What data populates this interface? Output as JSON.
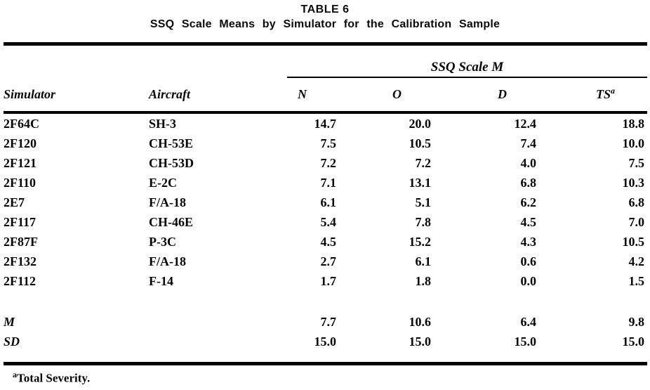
{
  "title": {
    "line1": "TABLE 6",
    "line2": "SSQ Scale Means by Simulator for the Calibration Sample"
  },
  "table": {
    "span_header": "SSQ Scale M",
    "columns": {
      "simulator": "Simulator",
      "aircraft": "Aircraft",
      "n": "N",
      "o": "O",
      "d": "D",
      "ts": "TS",
      "ts_superscript": "a"
    },
    "rows": [
      {
        "simulator": "2F64C",
        "aircraft": "SH-3",
        "n": "14.7",
        "o": "20.0",
        "d": "12.4",
        "ts": "18.8"
      },
      {
        "simulator": "2F120",
        "aircraft": "CH-53E",
        "n": "7.5",
        "o": "10.5",
        "d": "7.4",
        "ts": "10.0"
      },
      {
        "simulator": "2F121",
        "aircraft": "CH-53D",
        "n": "7.2",
        "o": "7.2",
        "d": "4.0",
        "ts": "7.5"
      },
      {
        "simulator": "2F110",
        "aircraft": "E-2C",
        "n": "7.1",
        "o": "13.1",
        "d": "6.8",
        "ts": "10.3"
      },
      {
        "simulator": "2E7",
        "aircraft": "F/A-18",
        "n": "6.1",
        "o": "5.1",
        "d": "6.2",
        "ts": "6.8"
      },
      {
        "simulator": "2F117",
        "aircraft": "CH-46E",
        "n": "5.4",
        "o": "7.8",
        "d": "4.5",
        "ts": "7.0"
      },
      {
        "simulator": "2F87F",
        "aircraft": "P-3C",
        "n": "4.5",
        "o": "15.2",
        "d": "4.3",
        "ts": "10.5"
      },
      {
        "simulator": "2F132",
        "aircraft": "F/A-18",
        "n": "2.7",
        "o": "6.1",
        "d": "0.6",
        "ts": "4.2"
      },
      {
        "simulator": "2F112",
        "aircraft": "F-14",
        "n": "1.7",
        "o": "1.8",
        "d": "0.0",
        "ts": "1.5"
      }
    ],
    "summary_rows": [
      {
        "label": "M",
        "n": "7.7",
        "o": "10.6",
        "d": "6.4",
        "ts": "9.8"
      },
      {
        "label": "SD",
        "n": "15.0",
        "o": "15.0",
        "d": "15.0",
        "ts": "15.0"
      }
    ],
    "footnote": {
      "superscript": "a",
      "text": "Total Severity."
    }
  }
}
